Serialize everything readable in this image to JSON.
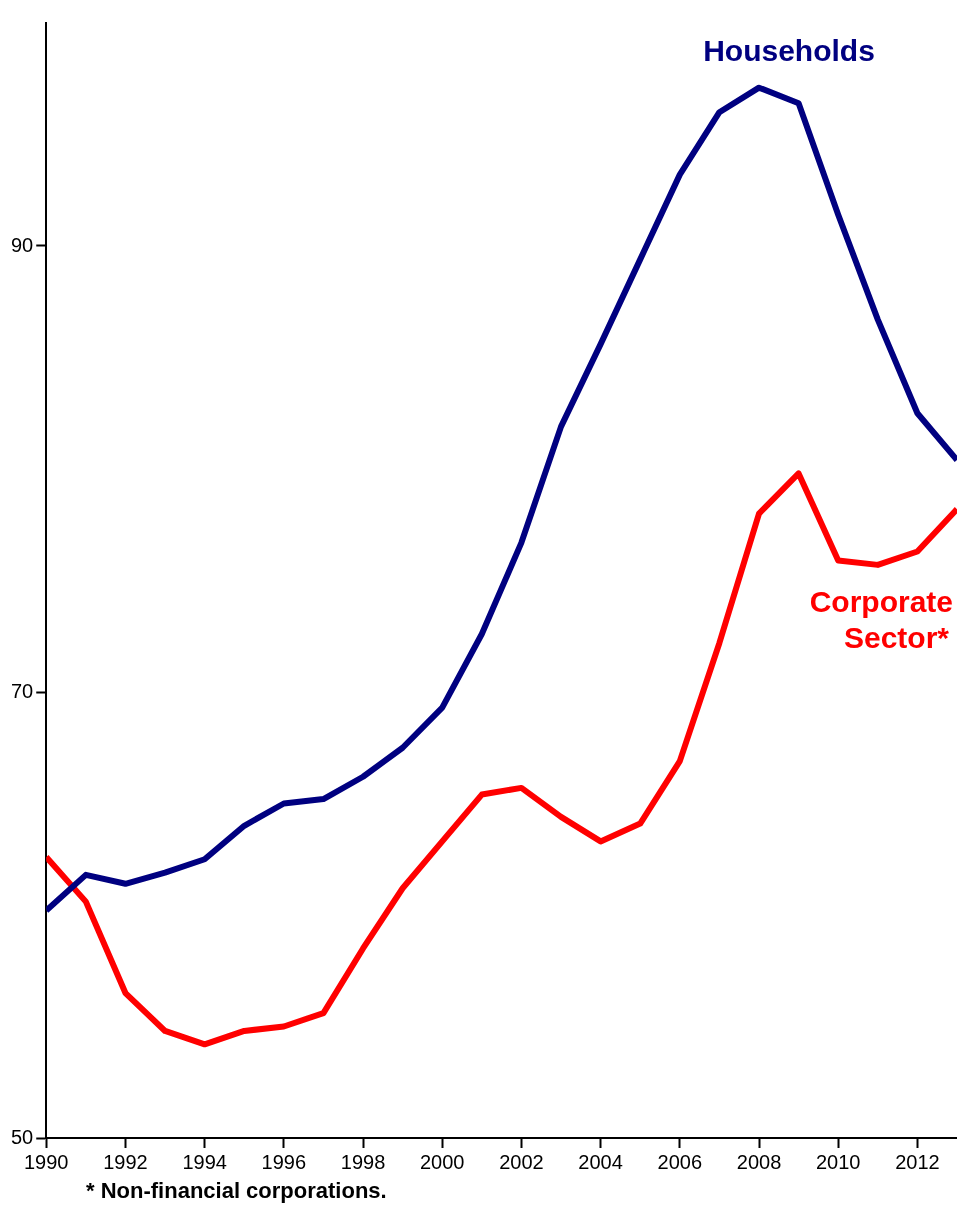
{
  "chart_data": {
    "type": "line",
    "x": [
      1990,
      1991,
      1992,
      1993,
      1994,
      1995,
      1996,
      1997,
      1998,
      1999,
      2000,
      2001,
      2002,
      2003,
      2004,
      2005,
      2006,
      2007,
      2008,
      2009,
      2010,
      2011,
      2012,
      2013
    ],
    "series": [
      {
        "name": "Households",
        "color": "#000080",
        "values": [
          60.2,
          61.8,
          61.4,
          61.9,
          62.5,
          64.0,
          65.0,
          65.2,
          66.2,
          67.5,
          69.3,
          72.6,
          76.7,
          81.9,
          85.6,
          89.4,
          93.2,
          96.0,
          97.1,
          96.4,
          91.4,
          86.7,
          82.5,
          80.4
        ]
      },
      {
        "name": "Corporate Sector*",
        "color": "#ff0000",
        "values": [
          62.6,
          60.6,
          56.5,
          54.8,
          54.2,
          54.8,
          55.0,
          55.6,
          58.5,
          61.2,
          63.3,
          65.4,
          65.7,
          64.4,
          63.3,
          64.1,
          66.9,
          72.2,
          78.0,
          79.8,
          75.9,
          75.7,
          76.3,
          78.2
        ]
      }
    ],
    "xlim": [
      1990,
      2013
    ],
    "xticks": [
      1990,
      1992,
      1994,
      1996,
      1998,
      2000,
      2002,
      2004,
      2006,
      2008,
      2010,
      2012
    ],
    "ylim": [
      50,
      100
    ],
    "yticks": [
      50,
      70,
      90
    ],
    "grid": false,
    "legend": false,
    "marker": "none",
    "line_style": "solid",
    "annotations": [
      "* Non-financial corporations."
    ]
  }
}
